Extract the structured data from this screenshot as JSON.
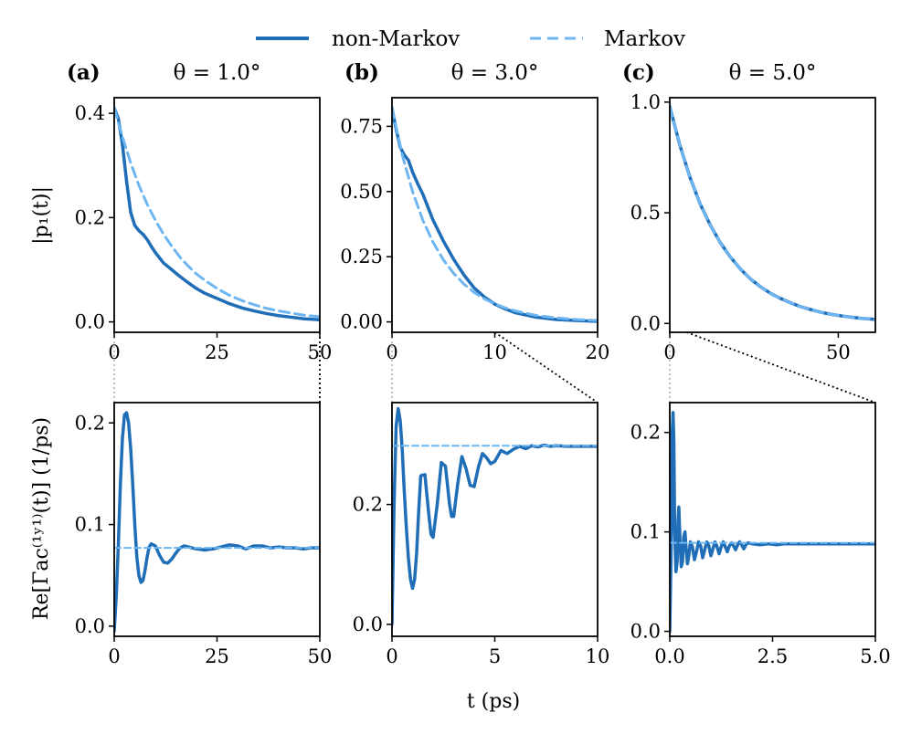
{
  "legend": {
    "items": [
      {
        "label": "non-Markov",
        "color": "#1f6eb7",
        "dash": "solid"
      },
      {
        "label": "Markov",
        "color": "#6db6f2",
        "dash": "dashed"
      }
    ]
  },
  "colors": {
    "non_markov": "#1f6eb7",
    "markov": "#6db6f2",
    "zoom_inner": "#bbbbbb",
    "zoom_outer": "#000000"
  },
  "shared_labels": {
    "top_ylabel": "|p₁(t)|",
    "bottom_ylabel": "Re[Γac⁽¹ʸ¹⁾(t)] (1/ps)",
    "xlabel": "t (ps)"
  },
  "chart_data": [
    {
      "id": "a-top",
      "type": "line",
      "panel_label": "(a)",
      "title": "θ = 1.0°",
      "xlim": [
        0,
        50
      ],
      "ylim": [
        -0.02,
        0.43
      ],
      "xticks": [
        0,
        25,
        50
      ],
      "yticks": [
        0.0,
        0.2,
        0.4
      ],
      "xtick_labels": [
        "0",
        "25",
        "50"
      ],
      "ytick_labels": [
        "0.0",
        "0.2",
        "0.4"
      ],
      "xlabel": "",
      "ylabel": "|p₁(t)|",
      "series": [
        {
          "name": "non-Markov",
          "x": [
            0,
            1,
            2,
            3,
            4,
            5,
            6,
            7,
            8,
            9,
            10,
            12,
            14,
            16,
            18,
            20,
            22,
            25,
            28,
            31,
            34,
            37,
            40,
            43,
            46,
            50
          ],
          "y": [
            0.41,
            0.39,
            0.34,
            0.27,
            0.21,
            0.185,
            0.175,
            0.168,
            0.158,
            0.145,
            0.133,
            0.113,
            0.1,
            0.087,
            0.075,
            0.064,
            0.055,
            0.045,
            0.035,
            0.027,
            0.021,
            0.016,
            0.012,
            0.009,
            0.006,
            0.004
          ]
        },
        {
          "name": "Markov",
          "x": [
            0,
            2,
            4,
            6,
            8,
            10,
            12,
            14,
            16,
            18,
            20,
            22,
            25,
            28,
            31,
            34,
            37,
            40,
            43,
            46,
            50
          ],
          "y": [
            0.41,
            0.355,
            0.305,
            0.262,
            0.226,
            0.195,
            0.168,
            0.145,
            0.124,
            0.107,
            0.092,
            0.08,
            0.064,
            0.051,
            0.041,
            0.033,
            0.026,
            0.021,
            0.017,
            0.013,
            0.01
          ]
        }
      ]
    },
    {
      "id": "b-top",
      "type": "line",
      "panel_label": "(b)",
      "title": "θ = 3.0°",
      "xlim": [
        0,
        20
      ],
      "ylim": [
        -0.04,
        0.86
      ],
      "xticks": [
        0,
        10,
        20
      ],
      "yticks": [
        0.0,
        0.25,
        0.5,
        0.75
      ],
      "xtick_labels": [
        "0",
        "10",
        "20"
      ],
      "ytick_labels": [
        "0.00",
        "0.25",
        "0.50",
        "0.75"
      ],
      "xlabel": "",
      "ylabel": "",
      "series": [
        {
          "name": "non-Markov",
          "x": [
            0,
            0.4,
            0.8,
            1.2,
            1.6,
            2.0,
            2.5,
            3,
            3.5,
            4,
            5,
            6,
            7,
            8,
            9,
            10,
            11,
            12,
            14,
            16,
            18,
            20
          ],
          "y": [
            0.82,
            0.74,
            0.67,
            0.64,
            0.62,
            0.575,
            0.53,
            0.49,
            0.44,
            0.39,
            0.31,
            0.24,
            0.18,
            0.13,
            0.095,
            0.068,
            0.05,
            0.035,
            0.018,
            0.009,
            0.005,
            0.002
          ]
        },
        {
          "name": "Markov",
          "x": [
            0,
            1,
            2,
            3,
            4,
            5,
            6,
            7,
            8,
            9,
            10,
            11,
            12,
            14,
            16,
            18,
            20
          ],
          "y": [
            0.82,
            0.64,
            0.5,
            0.39,
            0.305,
            0.238,
            0.186,
            0.145,
            0.113,
            0.088,
            0.069,
            0.054,
            0.042,
            0.025,
            0.015,
            0.009,
            0.005
          ]
        }
      ]
    },
    {
      "id": "c-top",
      "type": "line",
      "panel_label": "(c)",
      "title": "θ = 5.0°",
      "xlim": [
        0,
        61
      ],
      "ylim": [
        -0.04,
        1.02
      ],
      "xticks": [
        0,
        50
      ],
      "yticks": [
        0.0,
        0.5,
        1.0
      ],
      "xtick_labels": [
        "0",
        "50"
      ],
      "ytick_labels": [
        "0.0",
        "0.5",
        "1.0"
      ],
      "xlabel": "",
      "ylabel": "",
      "series": [
        {
          "name": "non-Markov",
          "x": [
            0,
            3,
            6,
            9,
            12,
            15,
            18,
            21,
            24,
            27,
            30,
            33,
            36,
            39,
            42,
            45,
            48,
            51,
            54,
            57,
            61
          ],
          "y": [
            0.98,
            0.805,
            0.66,
            0.54,
            0.445,
            0.365,
            0.3,
            0.245,
            0.2,
            0.165,
            0.135,
            0.112,
            0.092,
            0.075,
            0.062,
            0.05,
            0.041,
            0.034,
            0.028,
            0.023,
            0.018
          ]
        },
        {
          "name": "Markov",
          "x": [
            0,
            3,
            6,
            9,
            12,
            15,
            18,
            21,
            24,
            27,
            30,
            33,
            36,
            39,
            42,
            45,
            48,
            51,
            54,
            57,
            61
          ],
          "y": [
            0.98,
            0.805,
            0.66,
            0.54,
            0.445,
            0.365,
            0.3,
            0.245,
            0.2,
            0.165,
            0.135,
            0.112,
            0.092,
            0.075,
            0.062,
            0.05,
            0.041,
            0.034,
            0.028,
            0.023,
            0.018
          ]
        }
      ]
    },
    {
      "id": "a-bottom",
      "type": "line",
      "xlim": [
        0,
        50
      ],
      "ylim": [
        -0.01,
        0.22
      ],
      "xticks": [
        0,
        25,
        50
      ],
      "yticks": [
        0.0,
        0.1,
        0.2
      ],
      "xtick_labels": [
        "0",
        "25",
        "50"
      ],
      "ytick_labels": [
        "0.0",
        "0.1",
        "0.2"
      ],
      "xlabel": "",
      "ylabel": "Re[Γac⁽¹ʸ¹⁾(t)] (1/ps)",
      "series": [
        {
          "name": "non-Markov",
          "x": [
            0,
            0.5,
            1,
            1.5,
            2,
            2.5,
            3,
            3.5,
            4,
            4.5,
            5,
            5.5,
            6,
            6.5,
            7,
            7.5,
            8,
            8.5,
            9,
            10,
            11,
            12,
            13,
            14,
            15,
            16,
            17,
            18,
            20,
            22,
            24,
            26,
            28,
            30,
            32,
            34,
            36,
            38,
            40,
            42,
            44,
            46,
            48,
            50
          ],
          "y": [
            -0.005,
            0.03,
            0.08,
            0.14,
            0.185,
            0.208,
            0.21,
            0.2,
            0.175,
            0.14,
            0.1,
            0.068,
            0.05,
            0.043,
            0.045,
            0.055,
            0.068,
            0.078,
            0.081,
            0.079,
            0.07,
            0.063,
            0.062,
            0.066,
            0.072,
            0.077,
            0.079,
            0.078,
            0.076,
            0.075,
            0.076,
            0.078,
            0.08,
            0.079,
            0.076,
            0.079,
            0.079,
            0.077,
            0.078,
            0.077,
            0.077,
            0.076,
            0.077,
            0.077
          ]
        },
        {
          "name": "Markov",
          "x": [
            0,
            50
          ],
          "y": [
            0.077,
            0.077
          ]
        }
      ]
    },
    {
      "id": "b-bottom",
      "type": "line",
      "xlim": [
        0,
        10
      ],
      "ylim": [
        -0.02,
        0.37
      ],
      "xticks": [
        0,
        5,
        10
      ],
      "yticks": [
        0.0,
        0.2
      ],
      "xtick_labels": [
        "0",
        "5",
        "10"
      ],
      "ytick_labels": [
        "0.0",
        "0.2"
      ],
      "xlabel": "t (ps)",
      "ylabel": "",
      "series": [
        {
          "name": "non-Markov",
          "x": [
            0,
            0.1,
            0.2,
            0.3,
            0.4,
            0.5,
            0.6,
            0.7,
            0.8,
            0.9,
            1.0,
            1.1,
            1.2,
            1.3,
            1.4,
            1.6,
            1.8,
            1.9,
            2.0,
            2.2,
            2.4,
            2.6,
            2.8,
            2.9,
            3.0,
            3.2,
            3.4,
            3.6,
            3.8,
            4.0,
            4.2,
            4.4,
            4.6,
            4.8,
            5.0,
            5.3,
            5.6,
            5.9,
            6.2,
            6.5,
            6.8,
            7.1,
            7.4,
            7.7,
            8,
            8.5,
            9,
            9.5,
            10
          ],
          "y": [
            0.0,
            0.2,
            0.33,
            0.36,
            0.34,
            0.29,
            0.22,
            0.16,
            0.11,
            0.075,
            0.06,
            0.075,
            0.12,
            0.19,
            0.248,
            0.25,
            0.18,
            0.15,
            0.145,
            0.2,
            0.27,
            0.264,
            0.2,
            0.18,
            0.18,
            0.235,
            0.28,
            0.26,
            0.232,
            0.23,
            0.262,
            0.285,
            0.278,
            0.268,
            0.272,
            0.29,
            0.285,
            0.292,
            0.297,
            0.293,
            0.298,
            0.296,
            0.299,
            0.297,
            0.298,
            0.297,
            0.297,
            0.297,
            0.297
          ]
        },
        {
          "name": "Markov",
          "x": [
            0,
            10
          ],
          "y": [
            0.298,
            0.298
          ]
        }
      ]
    },
    {
      "id": "c-bottom",
      "type": "line",
      "xlim": [
        0,
        5
      ],
      "ylim": [
        -0.005,
        0.23
      ],
      "xticks": [
        0,
        2.5,
        5
      ],
      "yticks": [
        0.0,
        0.1,
        0.2
      ],
      "xtick_labels": [
        "0.0",
        "2.5",
        "5.0"
      ],
      "ytick_labels": [
        "0.0",
        "0.1",
        "0.2"
      ],
      "xlabel": "",
      "ylabel": "",
      "series": [
        {
          "name": "non-Markov",
          "x": [
            0,
            0.04,
            0.06,
            0.08,
            0.1,
            0.12,
            0.15,
            0.18,
            0.2,
            0.22,
            0.25,
            0.28,
            0.31,
            0.34,
            0.37,
            0.4,
            0.43,
            0.46,
            0.5,
            0.55,
            0.6,
            0.65,
            0.7,
            0.75,
            0.8,
            0.85,
            0.9,
            0.95,
            1.0,
            1.05,
            1.1,
            1.15,
            1.2,
            1.25,
            1.3,
            1.35,
            1.4,
            1.45,
            1.5,
            1.55,
            1.6,
            1.65,
            1.7,
            1.75,
            1.8,
            1.85,
            1.9,
            2.0,
            2.2,
            2.4,
            2.6,
            2.8,
            3.0,
            3.5,
            4.0,
            4.5,
            5.0
          ],
          "y": [
            0.0,
            0.1,
            0.2,
            0.22,
            0.19,
            0.1,
            0.06,
            0.07,
            0.11,
            0.125,
            0.09,
            0.065,
            0.07,
            0.095,
            0.1,
            0.082,
            0.068,
            0.075,
            0.09,
            0.085,
            0.072,
            0.08,
            0.09,
            0.086,
            0.074,
            0.082,
            0.09,
            0.086,
            0.076,
            0.083,
            0.09,
            0.085,
            0.078,
            0.085,
            0.09,
            0.085,
            0.08,
            0.086,
            0.089,
            0.086,
            0.082,
            0.087,
            0.09,
            0.087,
            0.083,
            0.087,
            0.089,
            0.088,
            0.087,
            0.088,
            0.087,
            0.088,
            0.088,
            0.088,
            0.088,
            0.088,
            0.088
          ]
        },
        {
          "name": "Markov",
          "x": [
            0,
            5
          ],
          "y": [
            0.089,
            0.089
          ]
        }
      ]
    }
  ]
}
